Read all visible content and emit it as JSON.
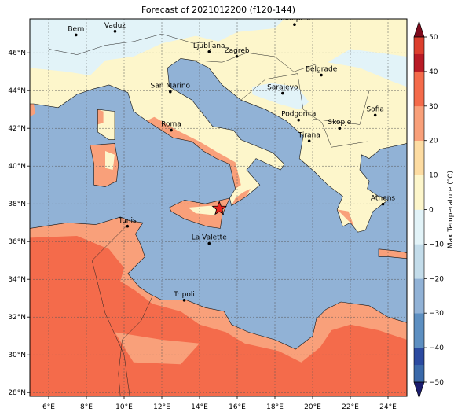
{
  "title": "Forecast of 2021012200 (f120-144)",
  "map": {
    "lon_range": [
      5,
      25
    ],
    "lat_range": [
      27.8,
      47.8
    ],
    "grid_lines": true,
    "lon_ticks": [
      "6°E",
      "8°E",
      "10°E",
      "12°E",
      "14°E",
      "16°E",
      "18°E",
      "20°E",
      "22°E",
      "24°E"
    ],
    "lat_ticks": [
      "28°N",
      "30°N",
      "32°N",
      "34°N",
      "36°N",
      "38°N",
      "40°N",
      "42°N",
      "44°N",
      "46°N"
    ],
    "sea_color": "#91b2d6",
    "land_cool_color": "#fdf6cb",
    "land_cold_color": "#e2f3f8",
    "land_warm_color": "#f9a07a",
    "land_hot_color": "#f46b4b"
  },
  "cities": [
    {
      "name": "Bern",
      "lon": 7.45,
      "lat": 46.95
    },
    {
      "name": "Vaduz",
      "lon": 9.52,
      "lat": 47.14
    },
    {
      "name": "Budapest",
      "lon": 19.04,
      "lat": 47.5
    },
    {
      "name": "Ljubljana",
      "lon": 14.51,
      "lat": 46.06
    },
    {
      "name": "Zagreb",
      "lon": 15.98,
      "lat": 45.81
    },
    {
      "name": "Belgrade",
      "lon": 20.46,
      "lat": 44.82
    },
    {
      "name": "San Marino",
      "lon": 12.45,
      "lat": 43.94
    },
    {
      "name": "Sarajevo",
      "lon": 18.41,
      "lat": 43.86
    },
    {
      "name": "Sofia",
      "lon": 23.32,
      "lat": 42.7
    },
    {
      "name": "Podgorica",
      "lon": 19.26,
      "lat": 42.44
    },
    {
      "name": "Skopje",
      "lon": 21.43,
      "lat": 42.0
    },
    {
      "name": "Roma",
      "lon": 12.5,
      "lat": 41.9
    },
    {
      "name": "Tirana",
      "lon": 19.82,
      "lat": 41.33
    },
    {
      "name": "Athens",
      "lon": 23.73,
      "lat": 37.98
    },
    {
      "name": "Tunis",
      "lon": 10.18,
      "lat": 36.81
    },
    {
      "name": "La Valette",
      "lon": 14.51,
      "lat": 35.9
    },
    {
      "name": "Tripoli",
      "lon": 13.19,
      "lat": 32.89
    }
  ],
  "marker": {
    "lon": 15.05,
    "lat": 37.75,
    "color": "#e8231d"
  },
  "colorbar": {
    "label": "Max Temperature (°C)",
    "ticks": [
      "−50",
      "−40",
      "−30",
      "−20",
      "−10",
      "0",
      "10",
      "20",
      "30",
      "40",
      "50"
    ],
    "colors": [
      "#1b1c6e",
      "#2b4aa0",
      "#3a69aa",
      "#5d8fc1",
      "#91b2d6",
      "#c3dcea",
      "#e2f3f8",
      "#fdf6cb",
      "#fddca2",
      "#f9a07a",
      "#f46b4b",
      "#dc3f2e",
      "#b81b26",
      "#7e0a1c"
    ]
  }
}
